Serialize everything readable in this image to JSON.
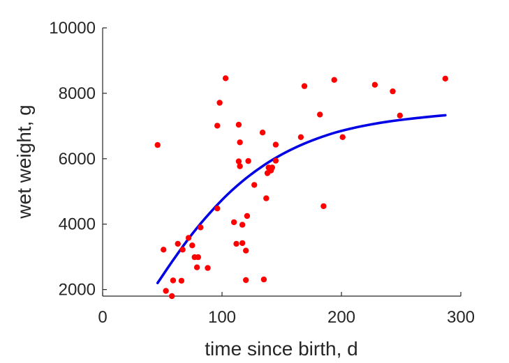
{
  "chart_data": {
    "type": "scatter",
    "title": "",
    "xlabel": "time since birth, d",
    "ylabel": "wet weight, g",
    "xlim": [
      0,
      300
    ],
    "ylim": [
      1800,
      10000
    ],
    "xticks": [
      0,
      100,
      200,
      300
    ],
    "yticks": [
      2000,
      4000,
      6000,
      8000,
      10000
    ],
    "grid": false,
    "legend": "none",
    "colors": {
      "points": "#ff0000",
      "curve": "#0000e6",
      "axes": "#262626"
    },
    "series": [
      {
        "kind": "points",
        "points": [
          [
            46,
            6420
          ],
          [
            51,
            3220
          ],
          [
            53,
            1960
          ],
          [
            58,
            1800
          ],
          [
            59,
            2280
          ],
          [
            63,
            3400
          ],
          [
            66,
            2270
          ],
          [
            67,
            3220
          ],
          [
            72,
            3580
          ],
          [
            75,
            3350
          ],
          [
            77,
            2990
          ],
          [
            79,
            2680
          ],
          [
            80,
            2990
          ],
          [
            82,
            3900
          ],
          [
            88,
            2660
          ],
          [
            96,
            4480
          ],
          [
            96,
            7010
          ],
          [
            98,
            7710
          ],
          [
            103,
            8460
          ],
          [
            110,
            4060
          ],
          [
            112,
            3400
          ],
          [
            114,
            5920
          ],
          [
            114,
            7040
          ],
          [
            115,
            5770
          ],
          [
            115,
            6500
          ],
          [
            117,
            3420
          ],
          [
            117,
            3980
          ],
          [
            120,
            2290
          ],
          [
            120,
            3190
          ],
          [
            121,
            4250
          ],
          [
            122,
            5930
          ],
          [
            127,
            5200
          ],
          [
            134,
            6800
          ],
          [
            135,
            2310
          ],
          [
            137,
            4790
          ],
          [
            138,
            5560
          ],
          [
            139,
            5730
          ],
          [
            141,
            5640
          ],
          [
            142,
            5730
          ],
          [
            145,
            5940
          ],
          [
            145,
            6430
          ],
          [
            166,
            6660
          ],
          [
            169,
            8220
          ],
          [
            182,
            7350
          ],
          [
            185,
            4550
          ],
          [
            194,
            8410
          ],
          [
            201,
            6660
          ],
          [
            228,
            8260
          ],
          [
            243,
            8060
          ],
          [
            249,
            7320
          ],
          [
            287,
            8450
          ]
        ]
      },
      {
        "kind": "line",
        "points": [
          [
            46,
            2200
          ],
          [
            60,
            2950
          ],
          [
            75,
            3700
          ],
          [
            90,
            4350
          ],
          [
            105,
            4920
          ],
          [
            120,
            5400
          ],
          [
            135,
            5800
          ],
          [
            150,
            6130
          ],
          [
            165,
            6400
          ],
          [
            180,
            6620
          ],
          [
            195,
            6800
          ],
          [
            210,
            6940
          ],
          [
            225,
            7050
          ],
          [
            240,
            7140
          ],
          [
            255,
            7210
          ],
          [
            270,
            7270
          ],
          [
            287,
            7330
          ]
        ]
      }
    ]
  }
}
